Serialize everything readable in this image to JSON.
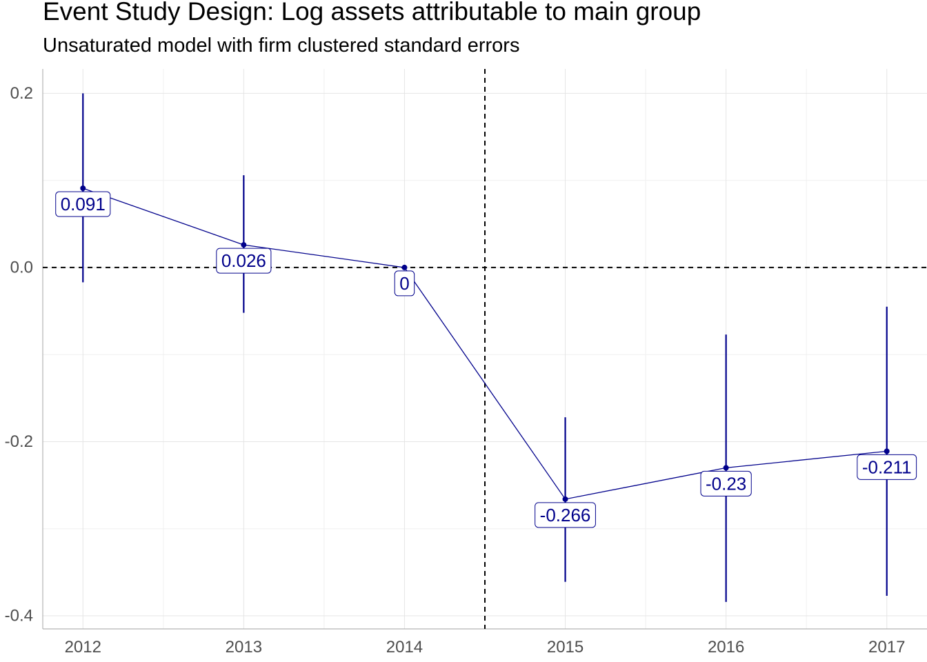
{
  "chart_data": {
    "type": "line",
    "title": "Event Study Design: Log assets attributable to main group",
    "subtitle": "Unsaturated model with firm clustered standard errors",
    "xlabel": "",
    "ylabel": "",
    "x": [
      2012,
      2013,
      2014,
      2015,
      2016,
      2017
    ],
    "x_tick_labels": [
      "2012",
      "2013",
      "2014",
      "2015",
      "2016",
      "2017"
    ],
    "xlim": [
      2011.75,
      2017.25
    ],
    "ylim": [
      -0.415,
      0.228
    ],
    "y_ticks": [
      0.2,
      0.0,
      -0.2,
      -0.4
    ],
    "y_tick_labels": [
      "0.2",
      "0.0",
      "-0.2",
      "-0.4"
    ],
    "series": [
      {
        "values": [
          0.091,
          0.026,
          0,
          -0.266,
          -0.23,
          -0.211
        ],
        "ci_lower": [
          -0.017,
          -0.052,
          0,
          -0.361,
          -0.384,
          -0.377
        ],
        "ci_upper": [
          0.2,
          0.106,
          0,
          -0.172,
          -0.077,
          -0.045
        ],
        "data_labels": [
          "0.091",
          "0.026",
          "0",
          "-0.266",
          "-0.23",
          "-0.211"
        ]
      }
    ],
    "reference_lines": {
      "horizontal_y": 0,
      "vertical_x": 2014.5
    },
    "grid": true,
    "colors": {
      "series": "#00008B",
      "reference_line": "#000000",
      "grid": "#e5e5e5",
      "axis": "#b3b3b3",
      "tick_label": "#4d4d4d"
    }
  }
}
